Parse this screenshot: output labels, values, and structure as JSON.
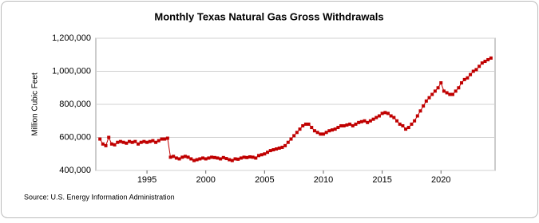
{
  "chart_data": {
    "type": "line",
    "title": "Monthly Texas Natural Gas Gross Withdrawals",
    "y_label": "Million Cubic Feet",
    "source": "Source: U.S. Energy Information Administration",
    "x": [
      1991.0,
      1991.25,
      1991.5,
      1991.75,
      1992.0,
      1992.25,
      1992.5,
      1992.75,
      1993.0,
      1993.25,
      1993.5,
      1993.75,
      1994.0,
      1994.25,
      1994.5,
      1994.75,
      1995.0,
      1995.25,
      1995.5,
      1995.75,
      1996.0,
      1996.25,
      1996.5,
      1996.75,
      1997.0,
      1997.25,
      1997.5,
      1997.75,
      1998.0,
      1998.25,
      1998.5,
      1998.75,
      1999.0,
      1999.25,
      1999.5,
      1999.75,
      2000.0,
      2000.25,
      2000.5,
      2000.75,
      2001.0,
      2001.25,
      2001.5,
      2001.75,
      2002.0,
      2002.25,
      2002.5,
      2002.75,
      2003.0,
      2003.25,
      2003.5,
      2003.75,
      2004.0,
      2004.25,
      2004.5,
      2004.75,
      2005.0,
      2005.25,
      2005.5,
      2005.75,
      2006.0,
      2006.25,
      2006.5,
      2006.75,
      2007.0,
      2007.25,
      2007.5,
      2007.75,
      2008.0,
      2008.25,
      2008.5,
      2008.75,
      2009.0,
      2009.25,
      2009.5,
      2009.75,
      2010.0,
      2010.25,
      2010.5,
      2010.75,
      2011.0,
      2011.25,
      2011.5,
      2011.75,
      2012.0,
      2012.25,
      2012.5,
      2012.75,
      2013.0,
      2013.25,
      2013.5,
      2013.75,
      2014.0,
      2014.25,
      2014.5,
      2014.75,
      2015.0,
      2015.25,
      2015.5,
      2015.75,
      2016.0,
      2016.25,
      2016.5,
      2016.75,
      2017.0,
      2017.25,
      2017.5,
      2017.75,
      2018.0,
      2018.25,
      2018.5,
      2018.75,
      2019.0,
      2019.25,
      2019.5,
      2019.75,
      2020.0,
      2020.25,
      2020.5,
      2020.75,
      2021.0,
      2021.25,
      2021.5,
      2021.75,
      2022.0,
      2022.25,
      2022.5,
      2022.75,
      2023.0,
      2023.25,
      2023.5,
      2023.75,
      2024.0,
      2024.25
    ],
    "series": [
      {
        "name": "Texas Natural Gas Gross Withdrawals",
        "color": "#c00000",
        "values": [
          590000,
          560000,
          550000,
          600000,
          560000,
          555000,
          570000,
          575000,
          570000,
          565000,
          575000,
          570000,
          575000,
          560000,
          570000,
          575000,
          570000,
          575000,
          580000,
          570000,
          580000,
          590000,
          590000,
          595000,
          480000,
          485000,
          475000,
          470000,
          480000,
          485000,
          480000,
          470000,
          460000,
          465000,
          470000,
          475000,
          470000,
          475000,
          480000,
          478000,
          475000,
          470000,
          478000,
          472000,
          465000,
          460000,
          470000,
          468000,
          475000,
          480000,
          478000,
          482000,
          480000,
          475000,
          490000,
          495000,
          500000,
          510000,
          520000,
          525000,
          530000,
          535000,
          540000,
          550000,
          570000,
          590000,
          610000,
          630000,
          650000,
          670000,
          680000,
          680000,
          660000,
          640000,
          630000,
          620000,
          620000,
          630000,
          640000,
          645000,
          650000,
          660000,
          670000,
          670000,
          675000,
          680000,
          670000,
          680000,
          690000,
          695000,
          700000,
          690000,
          700000,
          710000,
          720000,
          730000,
          745000,
          750000,
          745000,
          730000,
          720000,
          700000,
          680000,
          670000,
          650000,
          660000,
          680000,
          700000,
          730000,
          760000,
          790000,
          820000,
          840000,
          860000,
          880000,
          900000,
          930000,
          880000,
          870000,
          860000,
          860000,
          880000,
          900000,
          930000,
          950000,
          960000,
          980000,
          1000000,
          1010000,
          1030000,
          1050000,
          1060000,
          1070000,
          1080000
        ]
      }
    ],
    "xlim": [
      1990.65,
      2024.6
    ],
    "ylim": [
      400000,
      1200000
    ],
    "xticks": [
      1995,
      2000,
      2005,
      2010,
      2015,
      2020
    ],
    "yticks": [
      {
        "value": 400000,
        "label": "400,000"
      },
      {
        "value": 600000,
        "label": "600,000"
      },
      {
        "value": 800000,
        "label": "800,000"
      },
      {
        "value": 1000000,
        "label": "1,000,000"
      },
      {
        "value": 1200000,
        "label": "1,200,000"
      }
    ],
    "grid": true
  }
}
